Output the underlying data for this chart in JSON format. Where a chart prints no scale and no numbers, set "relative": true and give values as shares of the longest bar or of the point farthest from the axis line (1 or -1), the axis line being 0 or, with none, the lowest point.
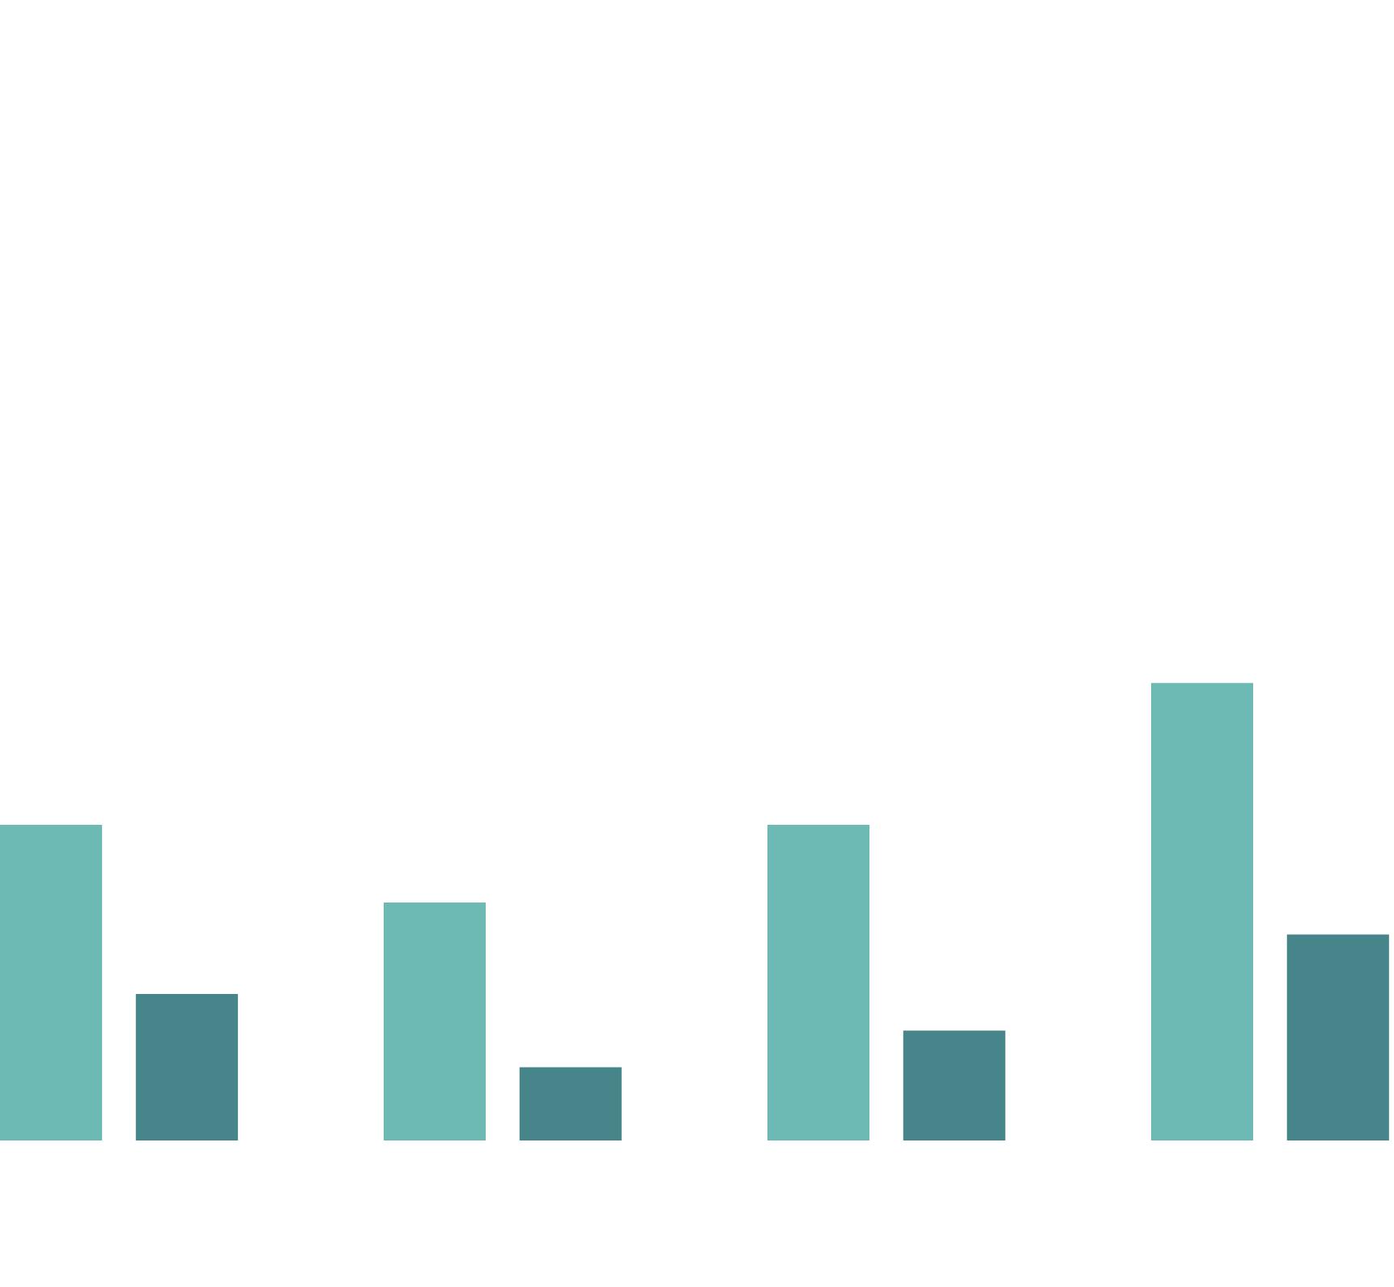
{
  "chart_data": {
    "type": "bar",
    "relative": true,
    "categories": [
      null,
      null,
      null,
      null
    ],
    "series": [
      {
        "color": "#6cbab3",
        "values": [
          0.69,
          0.52,
          0.69,
          1
        ]
      },
      {
        "color": "#46868b",
        "values": [
          0.32,
          0.16,
          0.24,
          0.45
        ]
      }
    ]
  }
}
